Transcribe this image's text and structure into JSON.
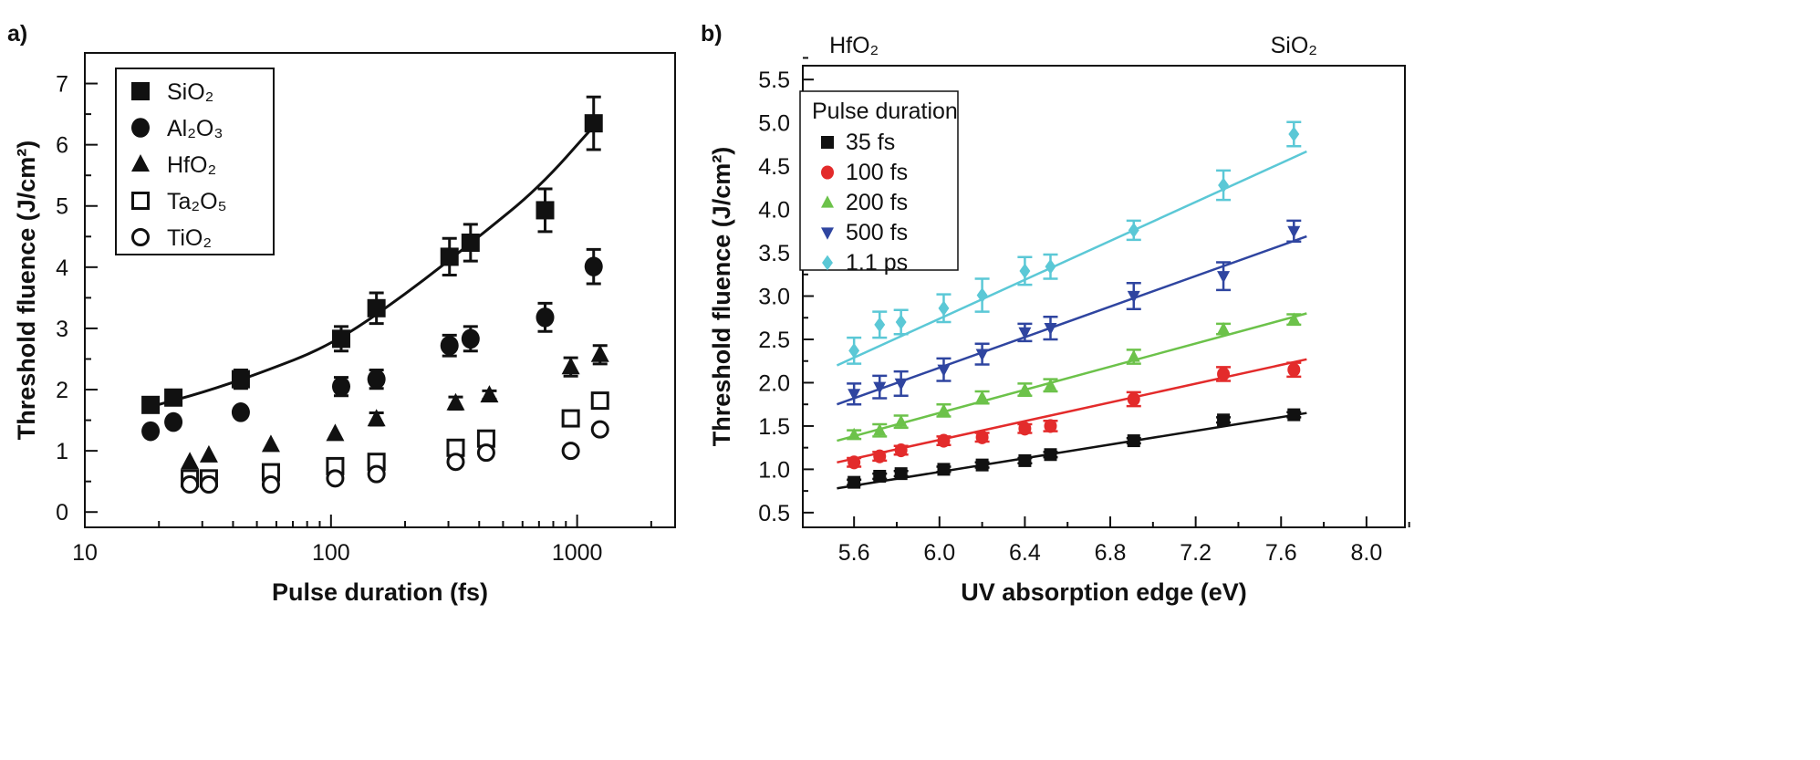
{
  "chart_data": [
    {
      "panel_label": "a)",
      "type": "scatter",
      "xlabel": "Pulse duration (fs)",
      "ylabel": "Threshold fluence (J/cm²)",
      "xscale": "log",
      "xlim": [
        10,
        2500
      ],
      "ylim": [
        -0.25,
        7.5
      ],
      "xticks": [
        10,
        100,
        1000
      ],
      "yticks": [
        0,
        1,
        2,
        3,
        4,
        5,
        6,
        7
      ],
      "grid": false,
      "legend_position": "top-left",
      "series": [
        {
          "name": "SiO₂",
          "marker": "filled-square",
          "x": [
            18.5,
            22.9,
            43,
            110,
            153,
            303,
            369,
            741,
            1167
          ],
          "y": [
            1.75,
            1.87,
            2.17,
            2.83,
            3.33,
            4.17,
            4.4,
            4.93,
            6.35
          ],
          "err": [
            0.05,
            0.05,
            0.15,
            0.2,
            0.25,
            0.3,
            0.3,
            0.35,
            0.43
          ]
        },
        {
          "name": "Al₂O₃",
          "marker": "filled-circle",
          "x": [
            18.5,
            22.9,
            43,
            110,
            153,
            303,
            369,
            741,
            1167
          ],
          "y": [
            1.32,
            1.47,
            1.63,
            2.05,
            2.17,
            2.72,
            2.83,
            3.18,
            4.01
          ],
          "err": [
            0,
            0,
            0,
            0.15,
            0.15,
            0.17,
            0.2,
            0.23,
            0.28
          ]
        },
        {
          "name": "HfO₂",
          "marker": "filled-triangle",
          "x": [
            26.7,
            31.9,
            57,
            104,
            153,
            321,
            440,
            942,
            1239
          ],
          "y": [
            0.82,
            0.93,
            1.1,
            1.28,
            1.52,
            1.78,
            1.91,
            2.37,
            2.57
          ],
          "err": [
            0,
            0,
            0,
            0,
            0.1,
            0.1,
            0.07,
            0.15,
            0.15
          ]
        },
        {
          "name": "Ta₂O₅",
          "marker": "open-square",
          "x": [
            26.7,
            31.9,
            57,
            104,
            153,
            321,
            427,
            942,
            1239
          ],
          "y": [
            0.55,
            0.55,
            0.65,
            0.75,
            0.82,
            1.05,
            1.2,
            1.53,
            1.82
          ],
          "err": [
            0,
            0,
            0,
            0,
            0,
            0,
            0,
            0,
            0
          ]
        },
        {
          "name": "TiO₂",
          "marker": "open-circle",
          "x": [
            26.7,
            31.9,
            57,
            104,
            153,
            321,
            427,
            942,
            1239
          ],
          "y": [
            0.45,
            0.45,
            0.45,
            0.55,
            0.62,
            0.82,
            0.97,
            1.0,
            1.35
          ],
          "err": [
            0,
            0,
            0,
            0,
            0,
            0,
            0,
            0,
            0
          ]
        }
      ],
      "fit": {
        "series": "SiO₂",
        "x": [
          18.5,
          30,
          50,
          100,
          200,
          400,
          700,
          1167
        ],
        "y": [
          1.72,
          1.95,
          2.25,
          2.72,
          3.55,
          4.5,
          5.3,
          6.3
        ]
      }
    },
    {
      "panel_label": "b)",
      "type": "scatter",
      "xlabel": "UV absorption edge (eV)",
      "ylabel": "Threshold fluence (J/cm²)",
      "xlim": [
        5.36,
        8.18
      ],
      "ylim": [
        0.33,
        5.66
      ],
      "xticks": [
        "5.6",
        "6.0",
        "6.4",
        "6.8",
        "7.2",
        "7.6",
        "8.0"
      ],
      "yticks": [
        "0.5",
        "1.0",
        "1.5",
        "2.0",
        "2.5",
        "3.0",
        "3.5",
        "4.0",
        "4.5",
        "5.0",
        "5.5"
      ],
      "grid": false,
      "legend_title": "Pulse duration",
      "legend_position": "top-left",
      "annotations": [
        {
          "text": "HfO₂",
          "x": 5.6
        },
        {
          "text": "SiO₂",
          "x": 7.66
        }
      ],
      "x": [
        5.6,
        5.72,
        5.82,
        6.02,
        6.2,
        6.4,
        6.52,
        6.91,
        7.33,
        7.66
      ],
      "series": [
        {
          "name": "35 fs",
          "marker": "square",
          "color": "#111111",
          "y": [
            0.85,
            0.92,
            0.95,
            1.0,
            1.05,
            1.1,
            1.17,
            1.33,
            1.57,
            1.63
          ],
          "err": [
            0.03,
            0.03,
            0.03,
            0.03,
            0.03,
            0.03,
            0.03,
            0.03,
            0.03,
            0.03
          ],
          "fit": [
            [
              5.52,
              0.78
            ],
            [
              7.72,
              1.65
            ]
          ]
        },
        {
          "name": "100 fs",
          "marker": "circle",
          "color": "#e32b2b",
          "y": [
            1.08,
            1.15,
            1.22,
            1.33,
            1.37,
            1.47,
            1.5,
            1.81,
            2.1,
            2.15
          ],
          "err": [
            0.05,
            0.05,
            0.05,
            0.05,
            0.05,
            0.05,
            0.06,
            0.08,
            0.08,
            0.08
          ],
          "fit": [
            [
              5.52,
              1.08
            ],
            [
              7.72,
              2.27
            ]
          ]
        },
        {
          "name": "200 fs",
          "marker": "triangle-up",
          "color": "#6cc24a",
          "y": [
            1.4,
            1.45,
            1.55,
            1.68,
            1.83,
            1.92,
            1.97,
            2.3,
            2.62,
            2.73
          ],
          "err": [
            0.05,
            0.07,
            0.07,
            0.07,
            0.07,
            0.07,
            0.07,
            0.08,
            0.06,
            0.06
          ],
          "fit": [
            [
              5.52,
              1.33
            ],
            [
              7.72,
              2.8
            ]
          ]
        },
        {
          "name": "500 fs",
          "marker": "triangle-down",
          "color": "#2f45a0",
          "y": [
            1.87,
            1.95,
            1.99,
            2.15,
            2.33,
            2.58,
            2.63,
            3.0,
            3.23,
            3.75
          ],
          "err": [
            0.12,
            0.13,
            0.14,
            0.13,
            0.12,
            0.1,
            0.13,
            0.15,
            0.16,
            0.12
          ],
          "fit": [
            [
              5.52,
              1.75
            ],
            [
              7.72,
              3.69
            ]
          ]
        },
        {
          "name": "1.1 ps",
          "marker": "diamond",
          "color": "#5bc8d6",
          "y": [
            2.37,
            2.67,
            2.7,
            2.86,
            3.01,
            3.29,
            3.34,
            3.76,
            4.28,
            4.87
          ],
          "err": [
            0.15,
            0.15,
            0.14,
            0.16,
            0.19,
            0.16,
            0.14,
            0.11,
            0.17,
            0.14
          ],
          "fit": [
            [
              5.52,
              2.2
            ],
            [
              7.72,
              4.67
            ]
          ]
        }
      ]
    }
  ]
}
